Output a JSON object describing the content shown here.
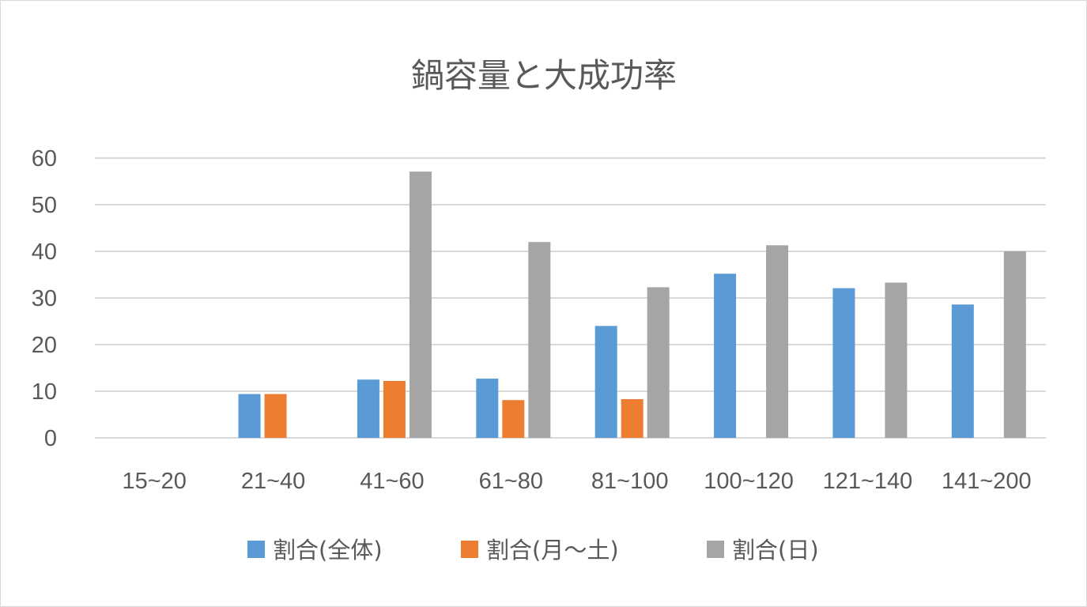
{
  "chart_data": {
    "type": "bar",
    "title": "鍋容量と大成功率",
    "categories": [
      "15~20",
      "21~40",
      "41~60",
      "61~80",
      "81~100",
      "100~120",
      "121~140",
      "141~200"
    ],
    "series": [
      {
        "name": "割合(全体)",
        "color": "#5b9bd5",
        "values": [
          0,
          9.4,
          12.5,
          12.7,
          24.0,
          35.2,
          32.1,
          28.6
        ]
      },
      {
        "name": "割合(月～土)",
        "color": "#ed7d31",
        "values": [
          0,
          9.4,
          12.2,
          8.1,
          8.3,
          0,
          0,
          0
        ]
      },
      {
        "name": "割合(日)",
        "color": "#a5a5a5",
        "values": [
          0,
          0,
          57.1,
          42.0,
          32.3,
          41.3,
          33.3,
          40.0
        ]
      }
    ],
    "ylim": [
      0,
      60
    ],
    "yticks": [
      0,
      10,
      20,
      30,
      40,
      50,
      60
    ],
    "xlabel": "",
    "ylabel": "",
    "grid": true,
    "legend_position": "bottom"
  }
}
